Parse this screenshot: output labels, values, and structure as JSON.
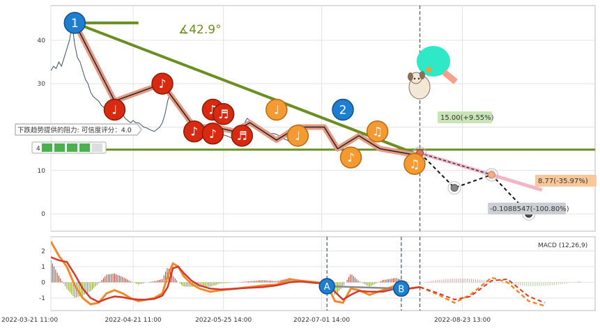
{
  "chart_data": [
    {
      "type": "line",
      "panel": "price",
      "y_ticks": [
        0,
        10,
        20,
        30,
        40
      ],
      "ylim": [
        -4,
        48
      ],
      "x_tick_labels": [
        "2022-03-21 11:00",
        "2022-04-21 11:00",
        "2022-05-25 14:00",
        "2022-07-01 14:00",
        "2022-08-23 13:00"
      ],
      "x_tick_pos": [
        0,
        31,
        65,
        102,
        155
      ],
      "xlim": [
        0,
        205
      ],
      "price_series": [
        [
          0,
          33
        ],
        [
          1,
          34
        ],
        [
          2,
          33.5
        ],
        [
          3,
          35
        ],
        [
          4,
          34
        ],
        [
          5,
          36
        ],
        [
          6,
          38
        ],
        [
          7,
          40
        ],
        [
          8,
          43.5
        ],
        [
          9,
          39
        ],
        [
          10,
          36
        ],
        [
          11,
          35
        ],
        [
          12,
          33
        ],
        [
          13,
          31
        ],
        [
          14,
          30
        ],
        [
          15,
          28
        ],
        [
          16,
          27
        ],
        [
          17,
          26.5
        ],
        [
          18,
          26
        ],
        [
          19,
          25
        ],
        [
          20,
          24.5
        ],
        [
          21,
          25
        ],
        [
          22,
          24
        ],
        [
          23,
          23
        ],
        [
          24,
          24
        ],
        [
          25,
          23
        ],
        [
          26,
          22.5
        ],
        [
          27,
          23
        ],
        [
          28,
          22
        ],
        [
          29,
          21.5
        ],
        [
          30,
          21
        ],
        [
          31,
          21.5
        ],
        [
          32,
          21
        ],
        [
          33,
          21
        ],
        [
          34,
          20.5
        ],
        [
          35,
          20
        ],
        [
          36,
          19.8
        ],
        [
          37,
          19.5
        ],
        [
          38,
          19.2
        ],
        [
          39,
          19
        ],
        [
          40,
          19.5
        ],
        [
          41,
          20
        ],
        [
          42,
          21
        ],
        [
          43,
          23
        ],
        [
          44,
          26
        ],
        [
          45,
          28
        ],
        [
          46,
          27
        ],
        [
          47,
          26
        ],
        [
          48,
          25
        ],
        [
          49,
          24
        ],
        [
          50,
          23
        ],
        [
          51,
          22.5
        ],
        [
          52,
          22
        ],
        [
          53,
          21.5
        ],
        [
          54,
          21
        ],
        [
          55,
          20.5
        ],
        [
          56,
          20
        ],
        [
          57,
          19.5
        ],
        [
          58,
          19
        ],
        [
          59,
          18.5
        ],
        [
          60,
          18.5
        ],
        [
          61,
          18.2
        ],
        [
          62,
          18
        ],
        [
          63,
          18.3
        ],
        [
          64,
          18.5
        ],
        [
          65,
          18.2
        ],
        [
          66,
          18
        ],
        [
          67,
          17.8
        ],
        [
          68,
          17.5
        ],
        [
          69,
          17.5
        ],
        [
          70,
          18
        ],
        [
          71,
          18.5
        ],
        [
          72,
          19.5
        ],
        [
          73,
          21
        ],
        [
          74,
          22
        ],
        [
          75,
          21.5
        ],
        [
          76,
          21
        ],
        [
          77,
          20.5
        ],
        [
          78,
          20
        ],
        [
          79,
          19.5
        ],
        [
          80,
          19.5
        ],
        [
          81,
          19
        ],
        [
          82,
          18.5
        ],
        [
          83,
          18.5
        ],
        [
          84,
          18.5
        ],
        [
          85,
          18.3
        ],
        [
          86,
          18
        ],
        [
          87,
          17.5
        ],
        [
          88,
          17.2
        ],
        [
          89,
          17
        ],
        [
          90,
          16.5
        ],
        [
          91,
          16.3
        ],
        [
          92,
          16.2
        ],
        [
          93,
          16
        ],
        [
          94,
          16
        ]
      ],
      "wave_line": [
        [
          9,
          44
        ],
        [
          24,
          26
        ],
        [
          42,
          30
        ],
        [
          54,
          20
        ],
        [
          62,
          20
        ],
        [
          69,
          19
        ],
        [
          75,
          21
        ],
        [
          85,
          17
        ],
        [
          93,
          20
        ],
        [
          103,
          20
        ],
        [
          108,
          15
        ],
        [
          116,
          18
        ],
        [
          124,
          15
        ],
        [
          138,
          13.5
        ],
        [
          152,
          6
        ],
        [
          166,
          9
        ],
        [
          180,
          0
        ]
      ],
      "trend_line": [
        [
          9,
          44
        ],
        [
          139,
          13.5
        ]
      ],
      "angle_ref_line": [
        [
          9,
          44
        ],
        [
          33,
          44
        ]
      ],
      "resistance_level": 14.8,
      "markers": [
        {
          "id": "m0",
          "x": 9,
          "y": 44,
          "style": "blue",
          "label": "1"
        },
        {
          "id": "m1",
          "x": 24,
          "y": 24,
          "style": "red",
          "label": "♩"
        },
        {
          "id": "m2",
          "x": 42,
          "y": 30,
          "style": "red",
          "label": "♪"
        },
        {
          "id": "m3",
          "x": 54,
          "y": 19,
          "style": "red",
          "label": "♪"
        },
        {
          "id": "m4",
          "x": 61,
          "y": 18.5,
          "style": "red",
          "label": "♪"
        },
        {
          "id": "m5",
          "x": 61,
          "y": 24,
          "style": "red",
          "label": "♫"
        },
        {
          "id": "m6",
          "x": 65,
          "y": 23,
          "style": "red",
          "label": "♬"
        },
        {
          "id": "m7",
          "x": 72,
          "y": 18,
          "style": "red",
          "label": "♬"
        },
        {
          "id": "m8",
          "x": 85,
          "y": 24,
          "style": "orange",
          "label": "♩"
        },
        {
          "id": "m9",
          "x": 93,
          "y": 18,
          "style": "orange",
          "label": "♩"
        },
        {
          "id": "m10",
          "x": 110,
          "y": 24,
          "style": "blue",
          "label": "2"
        },
        {
          "id": "m11",
          "x": 113,
          "y": 13,
          "style": "orange",
          "label": "♪"
        },
        {
          "id": "m12",
          "x": 123,
          "y": 19,
          "style": "orange",
          "label": "♫"
        },
        {
          "id": "m13",
          "x": 137,
          "y": 11.5,
          "style": "orange",
          "label": "♫"
        }
      ],
      "projection_upper": [
        [
          139,
          14
        ],
        [
          166,
          9
        ],
        [
          185,
          5.5
        ]
      ],
      "projection_lower": [
        [
          139,
          14
        ],
        [
          152,
          6
        ],
        [
          166,
          9
        ],
        [
          180,
          0
        ]
      ],
      "proj_points": [
        {
          "x": 152,
          "y": 6,
          "kind": "grey"
        },
        {
          "x": 166,
          "y": 9,
          "kind": "orange"
        },
        {
          "x": 180,
          "y": 0,
          "kind": "dark"
        },
        {
          "x": 139,
          "y": 14,
          "kind": "red"
        }
      ],
      "vertical_marker_x": 139,
      "labels": {
        "angle": "∡42.9°",
        "resistance_note": "下跌趋势提供的阻力: 可信度评分：4.0",
        "rating_count": "4",
        "target_up": "15.00(+9.55%)",
        "target_mid": "8.77(-35.97%)",
        "target_low": "-0.1088547(-100.80%)"
      },
      "colors": {
        "trend": "#6b8e23",
        "wave": "#e59a84",
        "price": "#34495e",
        "red": "#cc2200",
        "orange": "#f0922b",
        "blue": "#1f7ec9",
        "pink": "#f2b6c6"
      }
    },
    {
      "type": "line",
      "panel": "macd",
      "title": "MACD (12,26,9)",
      "y_ticks": [
        -1,
        0,
        1,
        2
      ],
      "ylim": [
        -1.8,
        2.9
      ],
      "dif": [
        [
          0,
          2.6
        ],
        [
          3,
          1.7
        ],
        [
          6,
          1.0
        ],
        [
          9,
          -0.2
        ],
        [
          12,
          -1.0
        ],
        [
          15,
          -1.4
        ],
        [
          18,
          -1.3
        ],
        [
          21,
          -0.7
        ],
        [
          24,
          -0.5
        ],
        [
          27,
          -0.7
        ],
        [
          30,
          -1.0
        ],
        [
          33,
          -1.2
        ],
        [
          36,
          -1.1
        ],
        [
          39,
          -1.0
        ],
        [
          42,
          -0.7
        ],
        [
          44,
          0.4
        ],
        [
          46,
          1.2
        ],
        [
          48,
          1.0
        ],
        [
          50,
          0.4
        ],
        [
          53,
          -0.1
        ],
        [
          56,
          -0.4
        ],
        [
          60,
          -0.6
        ],
        [
          64,
          -0.5
        ],
        [
          70,
          -0.4
        ],
        [
          75,
          -0.3
        ],
        [
          80,
          -0.2
        ],
        [
          85,
          -0.15
        ],
        [
          90,
          0.2
        ],
        [
          94,
          0.1
        ],
        [
          100,
          0.0
        ],
        [
          104,
          -0.1
        ],
        [
          107,
          -1.2
        ],
        [
          110,
          -1.3
        ],
        [
          113,
          -0.4
        ],
        [
          116,
          -0.5
        ],
        [
          120,
          -0.8
        ],
        [
          125,
          -0.5
        ],
        [
          130,
          -0.2
        ],
        [
          135,
          -0.4
        ],
        [
          139,
          -0.3
        ]
      ],
      "dea": [
        [
          0,
          1.6
        ],
        [
          3,
          1.4
        ],
        [
          6,
          1.3
        ],
        [
          9,
          0.5
        ],
        [
          12,
          -0.4
        ],
        [
          15,
          -1.0
        ],
        [
          18,
          -1.25
        ],
        [
          21,
          -1.05
        ],
        [
          24,
          -0.9
        ],
        [
          27,
          -0.95
        ],
        [
          30,
          -1.05
        ],
        [
          33,
          -1.1
        ],
        [
          36,
          -1.1
        ],
        [
          39,
          -1.05
        ],
        [
          42,
          -0.85
        ],
        [
          44,
          -0.3
        ],
        [
          46,
          0.9
        ],
        [
          48,
          1.0
        ],
        [
          50,
          0.6
        ],
        [
          53,
          0.1
        ],
        [
          56,
          -0.2
        ],
        [
          60,
          -0.4
        ],
        [
          64,
          -0.45
        ],
        [
          70,
          -0.4
        ],
        [
          75,
          -0.35
        ],
        [
          80,
          -0.3
        ],
        [
          85,
          -0.2
        ],
        [
          90,
          0.0
        ],
        [
          94,
          0.05
        ],
        [
          100,
          -0.05
        ],
        [
          104,
          -0.05
        ],
        [
          107,
          -0.6
        ],
        [
          110,
          -1.1
        ],
        [
          113,
          -0.8
        ],
        [
          116,
          -0.55
        ],
        [
          120,
          -0.6
        ],
        [
          125,
          -0.6
        ],
        [
          130,
          -0.4
        ],
        [
          135,
          -0.4
        ],
        [
          139,
          -0.3
        ]
      ],
      "dif_proj": [
        [
          139,
          -0.3
        ],
        [
          146,
          -0.8
        ],
        [
          152,
          -1.3
        ],
        [
          158,
          -0.8
        ],
        [
          166,
          0.3
        ],
        [
          172,
          0.0
        ],
        [
          180,
          -1.2
        ],
        [
          186,
          -1.5
        ]
      ],
      "dea_proj": [
        [
          139,
          -0.3
        ],
        [
          146,
          -0.7
        ],
        [
          152,
          -1.1
        ],
        [
          158,
          -0.9
        ],
        [
          166,
          0.1
        ],
        [
          172,
          0.2
        ],
        [
          180,
          -0.9
        ],
        [
          186,
          -1.3
        ]
      ],
      "points": [
        {
          "x": 104,
          "y": -0.25,
          "label": "A"
        },
        {
          "x": 132,
          "y": -0.4,
          "label": "B"
        }
      ],
      "dashed_x": [
        104,
        132,
        139
      ]
    }
  ]
}
